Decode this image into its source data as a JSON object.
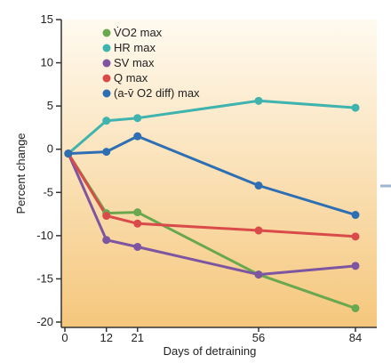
{
  "chart_data": {
    "type": "line",
    "xlabel": "Days of detraining",
    "ylabel": "Percent change",
    "x_ticks": [
      0,
      12,
      21,
      56,
      84
    ],
    "y_ticks": [
      15,
      10,
      5,
      0,
      -5,
      -10,
      -15,
      -20
    ],
    "xlim": [
      0,
      84
    ],
    "ylim": [
      -20,
      15
    ],
    "legend_position": "top-left",
    "grid": false,
    "x": [
      1,
      12,
      21,
      56,
      84
    ],
    "series": [
      {
        "name": "V̇O2 max",
        "color": "#6aa84f",
        "values": [
          -0.5,
          -7.4,
          -7.3,
          -14.5,
          -18.4
        ]
      },
      {
        "name": "HR max",
        "color": "#3fb3ad",
        "values": [
          -0.5,
          3.3,
          3.6,
          5.6,
          4.8
        ]
      },
      {
        "name": "SV max",
        "color": "#7d55a0",
        "values": [
          -0.5,
          -10.5,
          -11.3,
          -14.5,
          -13.5
        ]
      },
      {
        "name": "Q max",
        "color": "#d94a4a",
        "values": [
          -0.5,
          -7.7,
          -8.6,
          -9.4,
          -10.1
        ]
      },
      {
        "name": "(a-v̄ O2 diff) max",
        "color": "#2e6fb3",
        "values": [
          -0.5,
          -0.3,
          1.5,
          -4.2,
          -7.6
        ]
      }
    ]
  }
}
